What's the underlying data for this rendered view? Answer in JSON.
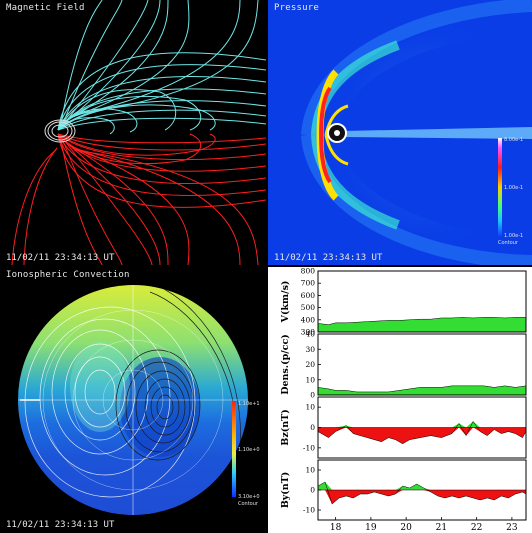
{
  "panels": {
    "magnetic": {
      "title": "Magnetic Field",
      "timestamp": "11/02/11 23:34:13 UT"
    },
    "pressure": {
      "title": "Pressure",
      "timestamp": "11/02/11 23:34:13 UT",
      "colorbar": {
        "max": "8.00e-1",
        "mid": "1.00e-1",
        "min": "1.00e-1",
        "label": "Contour"
      }
    },
    "ionosphere": {
      "title": "Ionospheric Convection",
      "timestamp": "11/02/11 23:34:13 UT",
      "colorbar": {
        "max": "1.10e+1",
        "mid": "1.10e+0",
        "min": "3.10e+0",
        "label": "Contour"
      }
    }
  },
  "colors": {
    "background": "#000000",
    "field_north": "#6fe7e7",
    "field_south": "#ff1e1e",
    "plot_fill_green": "#33dd33",
    "plot_fill_red": "#ee1111",
    "pressure_bg": "#0a3de6"
  },
  "chart_data": {
    "type": "area",
    "x_ticks": [
      "18",
      "19",
      "20",
      "21",
      "22",
      "23"
    ],
    "x_range": [
      17.5,
      23.4
    ],
    "grid": false,
    "series": [
      {
        "name": "V(km/s)",
        "yticks": [
          "300",
          "400",
          "500",
          "600",
          "700",
          "800"
        ],
        "ylim": [
          300,
          800
        ],
        "x": [
          17.5,
          17.8,
          18.0,
          18.3,
          18.6,
          18.9,
          19.2,
          19.5,
          19.8,
          20.1,
          20.4,
          20.7,
          21.0,
          21.3,
          21.6,
          21.9,
          22.2,
          22.5,
          22.8,
          23.1,
          23.4
        ],
        "values": [
          370,
          360,
          375,
          375,
          380,
          385,
          390,
          395,
          395,
          400,
          405,
          405,
          415,
          415,
          420,
          415,
          420,
          420,
          415,
          420,
          420
        ]
      },
      {
        "name": "Dens.(p/cc)",
        "yticks": [
          "0",
          "10",
          "20",
          "30",
          "40"
        ],
        "ylim": [
          0,
          40
        ],
        "x": [
          17.5,
          17.8,
          18.0,
          18.3,
          18.6,
          18.9,
          19.2,
          19.5,
          19.8,
          20.1,
          20.4,
          20.7,
          21.0,
          21.3,
          21.6,
          21.9,
          22.2,
          22.5,
          22.8,
          23.1,
          23.4
        ],
        "values": [
          5,
          4,
          3,
          3,
          2,
          2,
          2,
          2,
          3,
          4,
          5,
          5,
          5,
          6,
          6,
          6,
          6,
          5,
          6,
          5,
          6
        ]
      },
      {
        "name": "Bz(nT)",
        "yticks": [
          "-10",
          "0",
          "10"
        ],
        "ylim": [
          -15,
          15
        ],
        "x": [
          17.5,
          17.8,
          18.0,
          18.3,
          18.5,
          18.7,
          18.9,
          19.1,
          19.3,
          19.5,
          19.7,
          19.9,
          20.1,
          20.4,
          20.7,
          21.0,
          21.3,
          21.5,
          21.7,
          21.9,
          22.1,
          22.3,
          22.5,
          22.7,
          22.9,
          23.1,
          23.3,
          23.4
        ],
        "values": [
          -2,
          -5,
          -2,
          1,
          -3,
          -4,
          -5,
          -6,
          -7,
          -5,
          -6,
          -8,
          -6,
          -5,
          -4,
          -5,
          -3,
          2,
          -4,
          3,
          -2,
          -4,
          -1,
          -3,
          -2,
          -3,
          -5,
          -2
        ]
      },
      {
        "name": "By(nT)",
        "yticks": [
          "-10",
          "0",
          "10"
        ],
        "ylim": [
          -15,
          15
        ],
        "x": [
          17.5,
          17.7,
          17.9,
          18.1,
          18.3,
          18.5,
          18.7,
          18.9,
          19.1,
          19.3,
          19.5,
          19.7,
          19.9,
          20.1,
          20.3,
          20.5,
          20.7,
          20.9,
          21.1,
          21.3,
          21.5,
          21.7,
          21.9,
          22.1,
          22.3,
          22.5,
          22.7,
          22.9,
          23.1,
          23.3,
          23.4
        ],
        "values": [
          2,
          4,
          -7,
          -4,
          -3,
          -4,
          -2,
          -2,
          -1,
          -2,
          -3,
          -2,
          2,
          1,
          3,
          1,
          -1,
          -3,
          -4,
          -3,
          -4,
          -3,
          -4,
          -5,
          -4,
          -5,
          -3,
          -4,
          -2,
          -1,
          -2
        ]
      }
    ]
  }
}
